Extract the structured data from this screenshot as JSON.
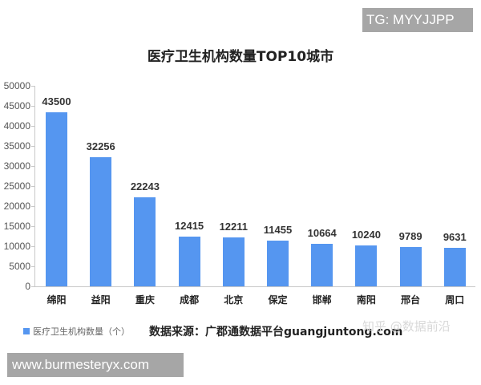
{
  "watermarks": {
    "tg": "TG: MYYJJPP",
    "site": "www.burmesteryx.com",
    "zhihu": "知乎 @数据前沿"
  },
  "source_note": "数据来源：广郡通数据平台guangjuntong.com",
  "colors": {
    "bar": "#5596f0",
    "axis": "#c8c8c8"
  },
  "chart_data": {
    "type": "bar",
    "title": "医疗卫生机构数量TOP10城市",
    "xlabel": "",
    "ylabel": "",
    "ylim": [
      0,
      50000
    ],
    "yticks": [
      0,
      5000,
      10000,
      15000,
      20000,
      25000,
      30000,
      35000,
      40000,
      45000,
      50000
    ],
    "categories": [
      "绵阳",
      "益阳",
      "重庆",
      "成都",
      "北京",
      "保定",
      "邯郸",
      "南阳",
      "邢台",
      "周口"
    ],
    "series": [
      {
        "name": "医疗卫生机构数量（个）",
        "values": [
          43500,
          32256,
          22243,
          12415,
          12211,
          11455,
          10664,
          10240,
          9789,
          9631
        ]
      }
    ],
    "data_labels": true,
    "grid": false,
    "legend_position": "bottom-left"
  }
}
